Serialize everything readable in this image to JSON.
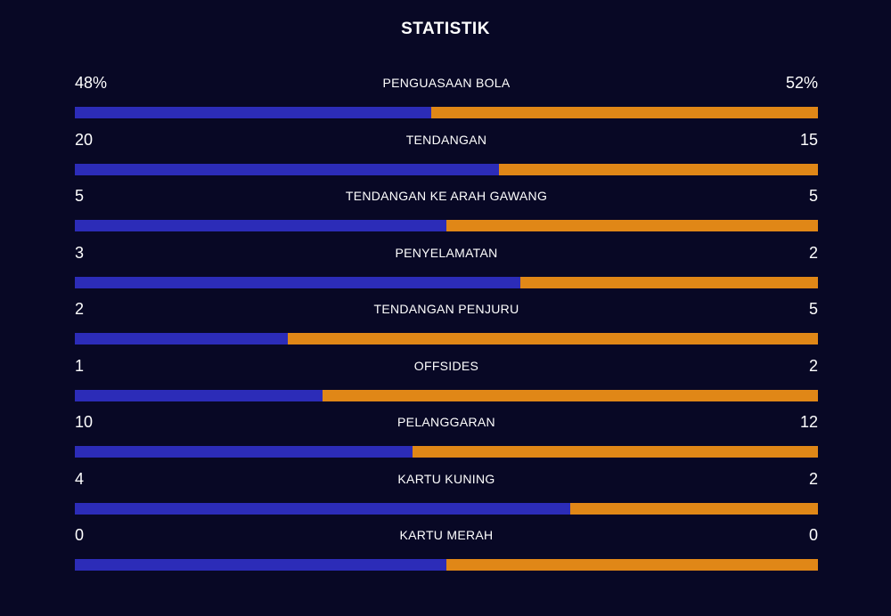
{
  "title": "STATISTIK",
  "colors": {
    "background": "#080825",
    "home": "#2c2cb8",
    "away": "#e08717"
  },
  "stats": [
    {
      "label": "PENGUASAAN BOLA",
      "home": "48%",
      "away": "52%",
      "home_share": 0.48
    },
    {
      "label": "TENDANGAN",
      "home": "20",
      "away": "15",
      "home_share": 0.571
    },
    {
      "label": "TENDANGAN KE ARAH GAWANG",
      "home": "5",
      "away": "5",
      "home_share": 0.5
    },
    {
      "label": "PENYELAMATAN",
      "home": "3",
      "away": "2",
      "home_share": 0.6
    },
    {
      "label": "TENDANGAN PENJURU",
      "home": "2",
      "away": "5",
      "home_share": 0.286
    },
    {
      "label": "OFFSIDES",
      "home": "1",
      "away": "2",
      "home_share": 0.333
    },
    {
      "label": "PELANGGARAN",
      "home": "10",
      "away": "12",
      "home_share": 0.455
    },
    {
      "label": "KARTU KUNING",
      "home": "4",
      "away": "2",
      "home_share": 0.667
    },
    {
      "label": "KARTU MERAH",
      "home": "0",
      "away": "0",
      "home_share": 0.5
    }
  ]
}
